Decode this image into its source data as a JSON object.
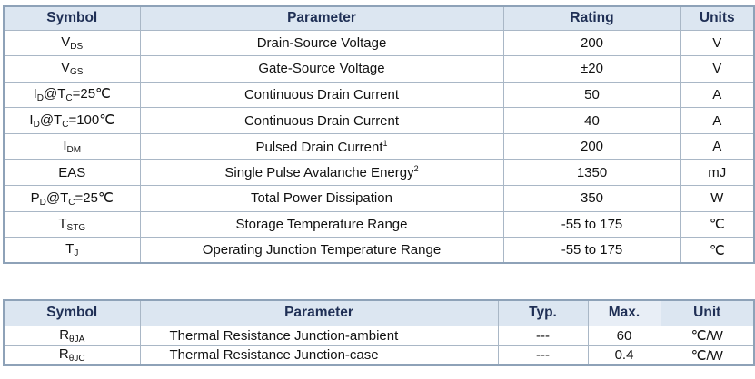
{
  "absolute_ratings": {
    "headers": {
      "symbol": "Symbol",
      "parameter": "Parameter",
      "rating": "Rating",
      "units": "Units"
    },
    "rows": [
      {
        "sym_main": "V",
        "sym_sub": "DS",
        "sym_tail": "",
        "sym_sub2": "",
        "sym_tail2": "",
        "parameter": "Drain-Source Voltage",
        "sup": "",
        "rating": "200",
        "unit": "V"
      },
      {
        "sym_main": "V",
        "sym_sub": "GS",
        "sym_tail": "",
        "sym_sub2": "",
        "sym_tail2": "",
        "parameter": "Gate-Source Voltage",
        "sup": "",
        "rating": "±20",
        "unit": "V"
      },
      {
        "sym_main": "I",
        "sym_sub": "D",
        "sym_tail": "@T",
        "sym_sub2": "C",
        "sym_tail2": "=25℃",
        "parameter": "Continuous Drain Current",
        "sup": "",
        "rating": "50",
        "unit": "A"
      },
      {
        "sym_main": "I",
        "sym_sub": "D",
        "sym_tail": "@T",
        "sym_sub2": "C",
        "sym_tail2": "=100℃",
        "parameter": "Continuous Drain Current",
        "sup": "",
        "rating": "40",
        "unit": "A"
      },
      {
        "sym_main": "I",
        "sym_sub": "DM",
        "sym_tail": "",
        "sym_sub2": "",
        "sym_tail2": "",
        "parameter": "Pulsed Drain Current",
        "sup": "1",
        "rating": "200",
        "unit": "A"
      },
      {
        "sym_main": "EAS",
        "sym_sub": "",
        "sym_tail": "",
        "sym_sub2": "",
        "sym_tail2": "",
        "parameter": "Single Pulse Avalanche Energy",
        "sup": "2",
        "rating": "1350",
        "unit": "mJ"
      },
      {
        "sym_main": "P",
        "sym_sub": "D",
        "sym_tail": "@T",
        "sym_sub2": "C",
        "sym_tail2": "=25℃",
        "parameter": "Total Power Dissipation",
        "sup": "",
        "rating": "350",
        "unit": "W"
      },
      {
        "sym_main": "T",
        "sym_sub": "STG",
        "sym_tail": "",
        "sym_sub2": "",
        "sym_tail2": "",
        "parameter": "Storage Temperature Range",
        "sup": "",
        "rating": "-55 to 175",
        "unit": "℃"
      },
      {
        "sym_main": "T",
        "sym_sub": "J",
        "sym_tail": "",
        "sym_sub2": "",
        "sym_tail2": "",
        "parameter": "Operating Junction Temperature Range",
        "sup": "",
        "rating": "-55 to 175",
        "unit": "℃"
      }
    ]
  },
  "thermal": {
    "headers": {
      "symbol": "Symbol",
      "parameter": "Parameter",
      "typ": "Typ.",
      "max": "Max.",
      "unit": "Unit"
    },
    "rows": [
      {
        "sym_main": "R",
        "sym_sub": "θJA",
        "parameter": "Thermal Resistance Junction-ambient",
        "typ": "---",
        "max": "60",
        "unit": "℃/W"
      },
      {
        "sym_main": "R",
        "sym_sub": "θJC",
        "parameter": "Thermal Resistance Junction-case",
        "typ": "---",
        "max": "0.4",
        "unit": "℃/W"
      }
    ]
  }
}
